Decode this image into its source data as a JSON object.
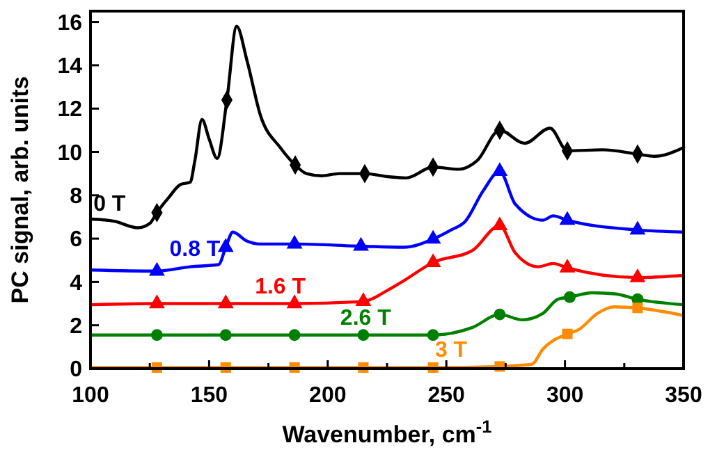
{
  "chart_data": {
    "type": "line",
    "xlabel": "Wavenumber, cm$^{-1}$",
    "ylabel": "PC signal, arb. units",
    "xlim": [
      100,
      350
    ],
    "xticks": [
      100,
      {
        "value": 125,
        "label": null
      },
      150,
      {
        "value": 175,
        "label": null
      },
      200,
      {
        "value": 225,
        "label": null
      },
      250,
      {
        "value": 275,
        "label": null
      },
      300,
      {
        "value": 325,
        "label": null
      },
      350
    ],
    "ylim": [
      0,
      16.5
    ],
    "yticks": [
      0,
      2,
      4,
      6,
      8,
      10,
      12,
      14,
      16
    ],
    "grid": false,
    "legend": false,
    "line_style": "solid",
    "series": [
      {
        "name": "0 T",
        "marker": "none",
        "color": "#000000",
        "x": [
          100,
          110,
          120,
          125,
          128,
          133,
          138,
          142,
          144,
          147,
          150,
          153.4,
          157.5,
          161.6,
          166,
          171.6,
          180,
          186.3,
          191,
          197.4,
          205,
          215.6,
          226,
          233,
          244.4,
          255.5,
          263,
          272.5,
          283,
          293.7,
          301,
          316,
          330.6,
          337.7,
          350
        ],
        "values": [
          6.9,
          6.8,
          6.5,
          6.7,
          7.2,
          7.9,
          8.5,
          8.6,
          9.6,
          11.5,
          10.6,
          9.7,
          12.4,
          15.8,
          14.2,
          11.7,
          10.2,
          9.4,
          9.0,
          8.9,
          9.0,
          9.0,
          8.85,
          8.8,
          9.3,
          9.2,
          9.6,
          11.0,
          10.4,
          11.1,
          10.05,
          10.1,
          9.9,
          9.8,
          10.2
        ]
      },
      {
        "name": "0.8 T",
        "marker": "none",
        "color": "#0000ff",
        "x": [
          100,
          128,
          142,
          154,
          157,
          160,
          165.7,
          171.6,
          186,
          214,
          232,
          244.4,
          252,
          258,
          265.5,
          272.5,
          279,
          290.7,
          295,
          301,
          330.6,
          350
        ],
        "values": [
          4.55,
          4.5,
          4.7,
          4.8,
          5.6,
          6.3,
          5.9,
          5.75,
          5.75,
          5.65,
          5.6,
          5.98,
          6.4,
          6.8,
          8.2,
          9.1,
          7.6,
          6.85,
          7.05,
          6.85,
          6.4,
          6.3
        ]
      },
      {
        "name": "1.6 T",
        "marker": "none",
        "color": "#ff0000",
        "x": [
          100,
          128,
          157,
          186,
          215,
          225,
          232,
          244.4,
          261,
          272.5,
          279,
          288.7,
          295,
          301,
          330.6,
          350
        ],
        "values": [
          2.95,
          3.0,
          3.0,
          3.0,
          3.1,
          3.6,
          4.05,
          4.9,
          5.45,
          6.6,
          5.35,
          4.7,
          4.85,
          4.65,
          4.2,
          4.3
        ]
      },
      {
        "name": "2.6 T",
        "marker": "none",
        "color": "#008000",
        "x": [
          100,
          128,
          157,
          186,
          215,
          244.4,
          261,
          272.5,
          282,
          290.7,
          297,
          302,
          311.4,
          321,
          330.6,
          350
        ],
        "values": [
          1.55,
          1.55,
          1.55,
          1.55,
          1.55,
          1.55,
          1.9,
          2.5,
          2.25,
          2.55,
          3.2,
          3.3,
          3.5,
          3.45,
          3.2,
          2.95
        ]
      },
      {
        "name": "3 T",
        "marker": "none",
        "color": "#ff8c00",
        "x": [
          100,
          128,
          157,
          186,
          215,
          244.4,
          272.5,
          286,
          290.7,
          301,
          305.8,
          313.7,
          320.6,
          330.6,
          350
        ],
        "values": [
          0.05,
          0.05,
          0.05,
          0.05,
          0.05,
          0.05,
          0.1,
          0.2,
          0.9,
          1.6,
          1.8,
          2.55,
          2.85,
          2.8,
          2.45
        ]
      },
      {
        "type": "scatter",
        "marker": "diamond",
        "color": "#000000",
        "x": [
          128,
          157.5,
          186.3,
          215.6,
          244.4,
          272.5,
          301,
          330.6
        ],
        "values": [
          7.2,
          12.4,
          9.4,
          9.0,
          9.3,
          11.0,
          10.05,
          9.9
        ]
      },
      {
        "type": "scatter",
        "marker": "triangle",
        "color": "#0000ff",
        "x": [
          128,
          157,
          186,
          214,
          244.4,
          272.5,
          301,
          330.6
        ],
        "values": [
          4.5,
          5.6,
          5.75,
          5.65,
          5.98,
          9.1,
          6.85,
          6.4
        ]
      },
      {
        "type": "scatter",
        "marker": "triangle",
        "color": "#ff0000",
        "x": [
          128,
          157,
          186,
          215,
          244.4,
          272.5,
          301,
          330.6
        ],
        "values": [
          3.0,
          3.0,
          3.0,
          3.1,
          4.9,
          6.6,
          4.65,
          4.2
        ]
      },
      {
        "type": "scatter",
        "marker": "circle",
        "color": "#008000",
        "x": [
          128,
          157,
          186,
          215,
          244.4,
          272.5,
          302,
          330.6
        ],
        "values": [
          1.55,
          1.55,
          1.55,
          1.55,
          1.55,
          2.5,
          3.3,
          3.2
        ]
      },
      {
        "type": "scatter",
        "marker": "square",
        "color": "#ff8c00",
        "x": [
          128,
          157,
          186,
          215,
          244.4,
          272.5,
          301,
          330.6
        ],
        "values": [
          0.05,
          0.05,
          0.05,
          0.05,
          0.05,
          0.1,
          1.6,
          2.8
        ]
      }
    ]
  }
}
